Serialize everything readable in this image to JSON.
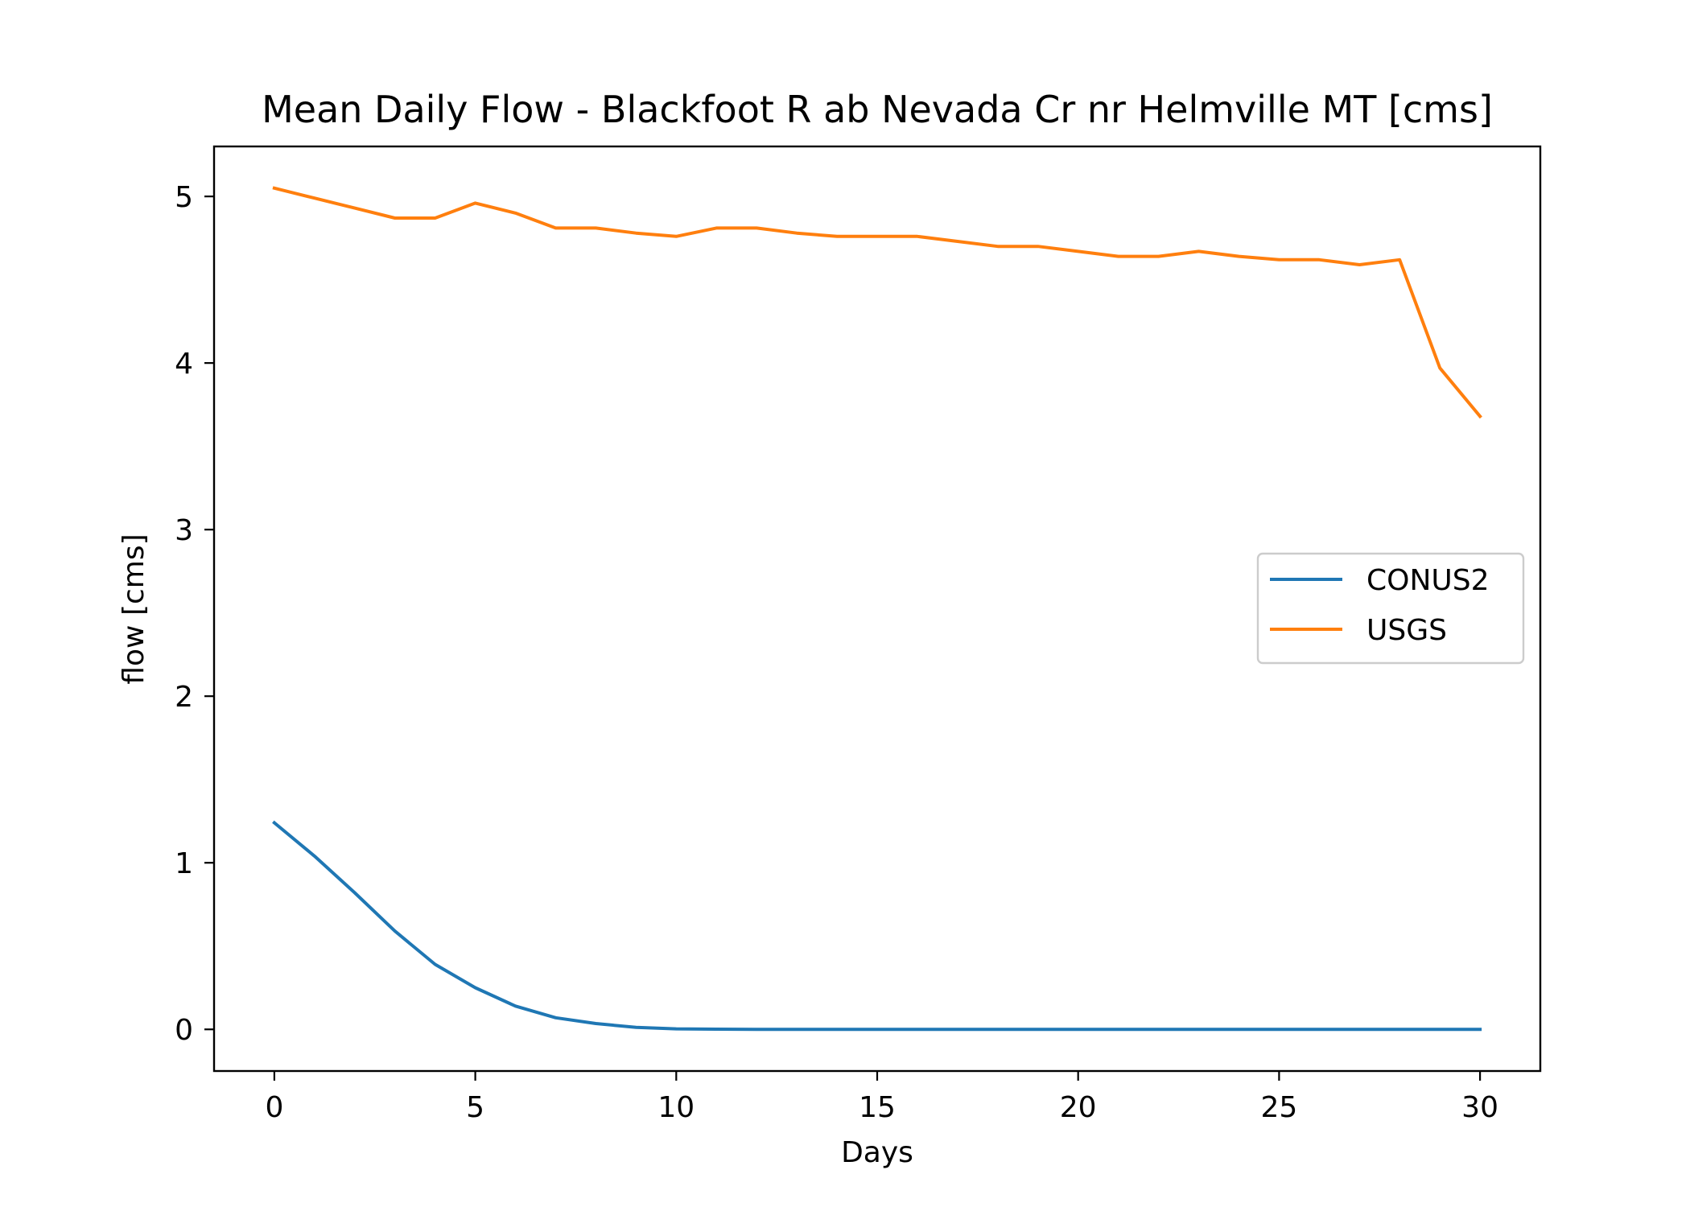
{
  "chart_data": {
    "type": "line",
    "title": "Mean Daily Flow - Blackfoot R ab Nevada Cr nr Helmville MT [cms]",
    "xlabel": "Days",
    "ylabel": "flow [cms]",
    "xlim": [
      -1.5,
      31.5
    ],
    "ylim": [
      -0.25,
      5.3
    ],
    "xticks": [
      0,
      5,
      10,
      15,
      20,
      25,
      30
    ],
    "yticks": [
      0,
      1,
      2,
      3,
      4,
      5
    ],
    "grid": false,
    "legend_position": "center-right",
    "x": [
      0,
      1,
      2,
      3,
      4,
      5,
      6,
      7,
      8,
      9,
      10,
      11,
      12,
      13,
      14,
      15,
      16,
      17,
      18,
      19,
      20,
      21,
      22,
      23,
      24,
      25,
      26,
      27,
      28,
      29,
      30
    ],
    "series": [
      {
        "name": "CONUS2",
        "color": "#1f77b4",
        "values": [
          1.24,
          1.04,
          0.82,
          0.59,
          0.39,
          0.25,
          0.14,
          0.07,
          0.035,
          0.012,
          0.003,
          0.001,
          0,
          0,
          0,
          0,
          0,
          0,
          0,
          0,
          0,
          0,
          0,
          0,
          0,
          0,
          0,
          0,
          0,
          0,
          0
        ]
      },
      {
        "name": "USGS",
        "color": "#ff7f0e",
        "values": [
          5.05,
          4.99,
          4.93,
          4.87,
          4.87,
          4.96,
          4.9,
          4.81,
          4.81,
          4.78,
          4.76,
          4.81,
          4.81,
          4.78,
          4.76,
          4.76,
          4.76,
          4.73,
          4.7,
          4.7,
          4.67,
          4.64,
          4.64,
          4.67,
          4.64,
          4.62,
          4.62,
          4.59,
          4.62,
          3.97,
          3.68
        ]
      }
    ]
  }
}
